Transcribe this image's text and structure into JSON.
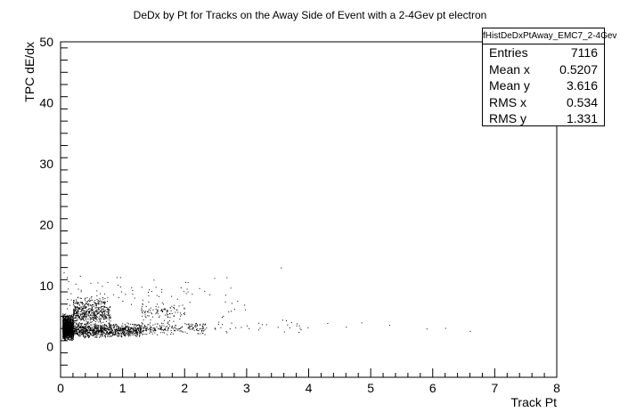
{
  "chart_data": {
    "type": "scatter",
    "title": "DeDx by Pt for Tracks on the Away Side of Event with a 2-4Gev pt electron",
    "xlabel": "Track Pt",
    "ylabel": "TPC dE/dx",
    "xlim": [
      0,
      8
    ],
    "ylim": [
      -5,
      50
    ],
    "x_ticks": [
      "0",
      "1",
      "2",
      "3",
      "4",
      "5",
      "6",
      "7",
      "8"
    ],
    "y_ticks": [
      "0",
      "10",
      "20",
      "30",
      "40",
      "50"
    ],
    "clusters": [
      {
        "x_range": [
          0.03,
          0.2
        ],
        "y_range": [
          1.0,
          5.5
        ],
        "count": 1200
      },
      {
        "x_range": [
          0.05,
          1.3
        ],
        "y_range": [
          1.5,
          4.0
        ],
        "count": 1100
      },
      {
        "x_range": [
          0.2,
          0.8
        ],
        "y_range": [
          3.0,
          8.5
        ],
        "count": 550
      },
      {
        "x_range": [
          1.3,
          2.3
        ],
        "y_range": [
          2.0,
          4.2
        ],
        "count": 200
      },
      {
        "x_range": [
          1.3,
          2.0
        ],
        "y_range": [
          4.0,
          7.5
        ],
        "count": 100
      },
      {
        "x_range": [
          2.3,
          4.0
        ],
        "y_range": [
          2.0,
          4.5
        ],
        "count": 40
      },
      {
        "x_range": [
          0.1,
          3.0
        ],
        "y_range": [
          5.0,
          12.0
        ],
        "count": 80
      }
    ],
    "sparse_points": [
      {
        "x": 3.55,
        "y": 13.0
      },
      {
        "x": 4.85,
        "y": 4.0
      },
      {
        "x": 5.3,
        "y": 3.6
      },
      {
        "x": 5.9,
        "y": 3.0
      },
      {
        "x": 6.2,
        "y": 3.1
      },
      {
        "x": 6.6,
        "y": 2.6
      },
      {
        "x": 4.3,
        "y": 3.9
      },
      {
        "x": 4.6,
        "y": 3.3
      },
      {
        "x": 2.6,
        "y": 4.9
      },
      {
        "x": 2.8,
        "y": 6.2
      },
      {
        "x": 0.05,
        "y": 12.2
      },
      {
        "x": 0.1,
        "y": 11.4
      },
      {
        "x": 1.5,
        "y": 11.0
      },
      {
        "x": 2.05,
        "y": 10.6
      },
      {
        "x": 2.4,
        "y": 8.6
      },
      {
        "x": 3.0,
        "y": 3.5
      }
    ]
  },
  "stats_box": {
    "name": "fHistDeDxPtAway_EMC7_2-4Gev",
    "rows": [
      {
        "label": "Entries",
        "value": "7116"
      },
      {
        "label": "Mean x",
        "value": "0.5207"
      },
      {
        "label": "Mean y",
        "value": "3.616"
      },
      {
        "label": "RMS x",
        "value": "0.534"
      },
      {
        "label": "RMS y",
        "value": "1.331"
      }
    ]
  }
}
